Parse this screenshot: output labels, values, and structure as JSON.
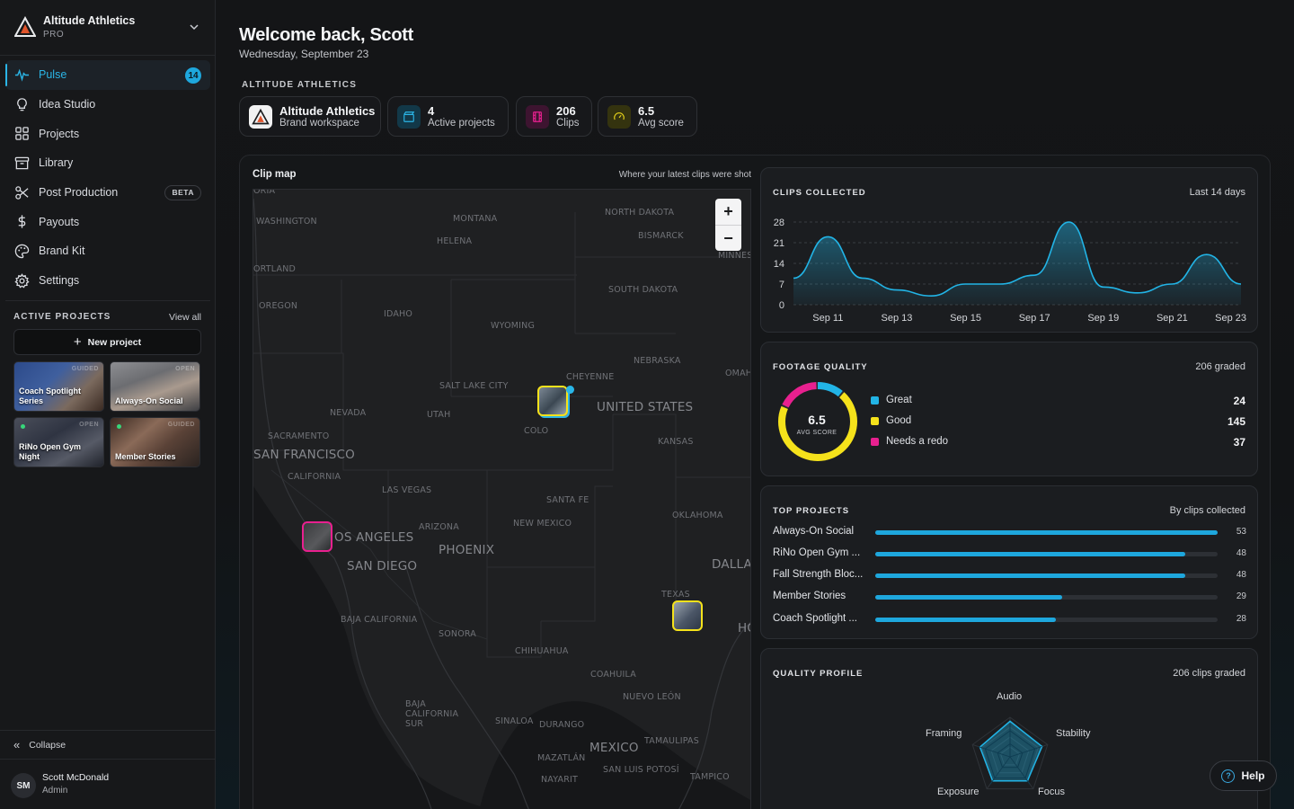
{
  "workspace": {
    "name": "Altitude Athletics",
    "plan": "PRO"
  },
  "nav": {
    "items": [
      {
        "label": "Pulse",
        "icon": "pulse-icon",
        "badge": "14",
        "active": true
      },
      {
        "label": "Idea Studio",
        "icon": "lightbulb-icon"
      },
      {
        "label": "Projects",
        "icon": "grid-icon"
      },
      {
        "label": "Library",
        "icon": "archive-icon"
      },
      {
        "label": "Post Production",
        "icon": "scissors-icon",
        "tag": "BETA"
      },
      {
        "label": "Payouts",
        "icon": "dollar-icon"
      },
      {
        "label": "Brand Kit",
        "icon": "palette-icon"
      },
      {
        "label": "Settings",
        "icon": "gear-icon"
      }
    ]
  },
  "active_projects": {
    "title": "ACTIVE PROJECTS",
    "view_all": "View all",
    "new_project": "New project",
    "cards": [
      {
        "label": "Coach Spotlight Series",
        "status": "GUIDED"
      },
      {
        "label": "Always-On Social",
        "status": "OPEN"
      },
      {
        "label": "RiNo Open Gym Night",
        "status": "OPEN"
      },
      {
        "label": "Member Stories",
        "status": "GUIDED"
      }
    ]
  },
  "collapse_label": "Collapse",
  "user": {
    "initials": "SM",
    "name": "Scott McDonald",
    "role": "Admin"
  },
  "header": {
    "welcome": "Welcome back, Scott",
    "date": "Wednesday, September 23"
  },
  "brand_section": {
    "label": "ALTITUDE ATHLETICS",
    "stats": [
      {
        "value": "Altitude Athletics",
        "label": "Brand workspace"
      },
      {
        "value": "4",
        "label": "Active projects"
      },
      {
        "value": "206",
        "label": "Clips"
      },
      {
        "value": "6.5",
        "label": "Avg score"
      }
    ]
  },
  "clip_map": {
    "title": "Clip map",
    "subtitle": "Where your latest clips were shot",
    "labels": [
      "ORIA",
      "WASHINGTON",
      "MONTANA",
      "NORTH DAKOTA",
      "HELENA",
      "BISMARCK",
      "MINNES",
      "ORTLAND",
      "OREGON",
      "IDAHO",
      "SOUTH DAKOTA",
      "WYOMING",
      "NEBRASKA",
      "OMAH",
      "CHEYENNE",
      "SALT LAKE CITY",
      "UTAH",
      "NEVADA",
      "UNITED STATES",
      "COLO",
      "KANSAS",
      "SACRAMENTO",
      "SAN FRANCISCO",
      "CALIFORNIA",
      "LAS VEGAS",
      "SANTA FE",
      "OKLAHOMA",
      "ARIZONA",
      "NEW MEXICO",
      "OS ANGELES",
      "PHOENIX",
      "SAN DIEGO",
      "DALLAS",
      "TEXAS",
      "HO",
      "BAJA CALIFORNIA",
      "SONORA",
      "CHIHUAHUA",
      "COAHUILA",
      "NUEVO LEÓN",
      "BAJA CALIFORNIA SUR",
      "SINALOA",
      "DURANGO",
      "MEXICO",
      "TAMAULIPAS",
      "MAZATLÁN",
      "SAN LUIS POTOSÍ",
      "NAYARIT",
      "TAMPICO"
    ]
  },
  "clips_collected": {
    "title": "CLIPS COLLECTED",
    "meta": "Last 14 days",
    "chart_data": {
      "type": "area",
      "x": [
        "Sep 10",
        "Sep 11",
        "Sep 12",
        "Sep 13",
        "Sep 14",
        "Sep 15",
        "Sep 16",
        "Sep 17",
        "Sep 18",
        "Sep 19",
        "Sep 20",
        "Sep 21",
        "Sep 22",
        "Sep 23"
      ],
      "values": [
        9,
        23,
        9,
        5,
        3,
        7,
        7,
        10,
        28,
        6,
        4,
        7,
        17,
        7
      ],
      "xticks": [
        "Sep 11",
        "Sep 13",
        "Sep 15",
        "Sep 17",
        "Sep 19",
        "Sep 21",
        "Sep 23"
      ],
      "yticks": [
        0,
        7,
        14,
        21,
        28
      ],
      "ylim": [
        0,
        28
      ],
      "grid": true,
      "color": "#22b4e6"
    }
  },
  "footage_quality": {
    "title": "FOOTAGE QUALITY",
    "meta": "206 graded",
    "score": "6.5",
    "score_label": "AVG SCORE",
    "chart_data": {
      "type": "pie",
      "categories": [
        "Great",
        "Good",
        "Needs a redo"
      ],
      "values": [
        24,
        145,
        37
      ],
      "colors": [
        "#22b4e6",
        "#f5e21b",
        "#e8208f"
      ]
    },
    "legend": [
      {
        "label": "Great",
        "value": "24",
        "color": "#22b4e6"
      },
      {
        "label": "Good",
        "value": "145",
        "color": "#f5e21b"
      },
      {
        "label": "Needs a redo",
        "value": "37",
        "color": "#e8208f"
      }
    ]
  },
  "top_projects": {
    "title": "TOP PROJECTS",
    "meta": "By clips collected",
    "chart_data": {
      "type": "bar",
      "categories": [
        "Always-On Social",
        "RiNo Open Gym ...",
        "Fall Strength Bloc...",
        "Member Stories",
        "Coach Spotlight ..."
      ],
      "values": [
        53,
        48,
        48,
        29,
        28
      ],
      "xlim": [
        0,
        53
      ]
    },
    "rows": [
      {
        "name": "Always-On Social",
        "value": "53",
        "fraction": 1.0
      },
      {
        "name": "RiNo Open Gym ...",
        "value": "48",
        "fraction": 0.906
      },
      {
        "name": "Fall Strength Bloc...",
        "value": "48",
        "fraction": 0.906
      },
      {
        "name": "Member Stories",
        "value": "29",
        "fraction": 0.547
      },
      {
        "name": "Coach Spotlight ...",
        "value": "28",
        "fraction": 0.528
      }
    ]
  },
  "quality_profile": {
    "title": "QUALITY PROFILE",
    "meta": "206 clips graded",
    "chart_data": {
      "type": "radar",
      "categories": [
        "Audio",
        "Stability",
        "Focus",
        "Exposure",
        "Framing"
      ],
      "values": [
        0.9,
        0.85,
        0.75,
        0.75,
        0.8
      ],
      "color": "#22b4e6"
    }
  },
  "help_label": "Help"
}
